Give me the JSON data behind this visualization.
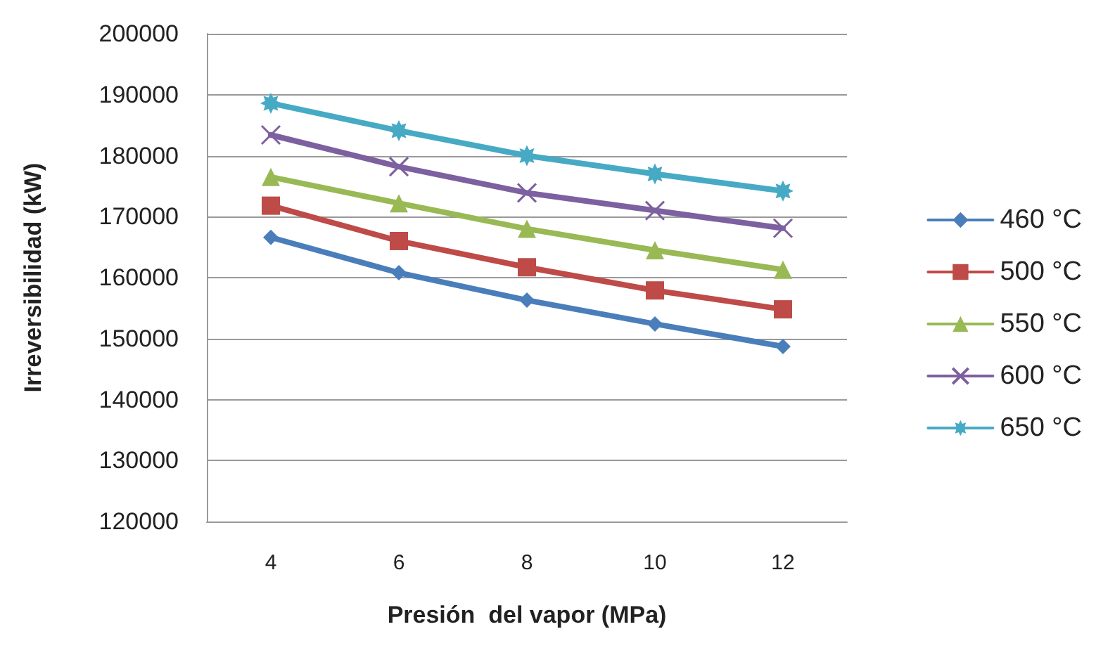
{
  "chart_data": {
    "type": "line",
    "xlabel": "Presión  del vapor (MPa)",
    "ylabel": "Irreversibilidad (kW)",
    "categories": [
      "4",
      "6",
      "8",
      "10",
      "12"
    ],
    "series": [
      {
        "name": "460 °C",
        "color": "#4a7ebb",
        "marker": "diamond",
        "values": [
          166600,
          160800,
          156300,
          152400,
          148700
        ]
      },
      {
        "name": "500 °C",
        "color": "#be4b48",
        "marker": "square",
        "values": [
          171800,
          166000,
          161700,
          157900,
          154800
        ]
      },
      {
        "name": "550 °C",
        "color": "#98b954",
        "marker": "triangle",
        "values": [
          176500,
          172200,
          168000,
          164500,
          161300
        ]
      },
      {
        "name": "600 °C",
        "color": "#7d60a0",
        "marker": "cross",
        "values": [
          183400,
          178200,
          173900,
          171000,
          168100
        ]
      },
      {
        "name": "650 °C",
        "color": "#46aac5",
        "marker": "star",
        "values": [
          188600,
          184100,
          180000,
          177000,
          174200
        ]
      }
    ],
    "ylim": [
      120000,
      200000
    ],
    "yticks": [
      120000,
      130000,
      140000,
      150000,
      160000,
      170000,
      180000,
      190000,
      200000
    ],
    "grid": "y",
    "legend": "right"
  }
}
